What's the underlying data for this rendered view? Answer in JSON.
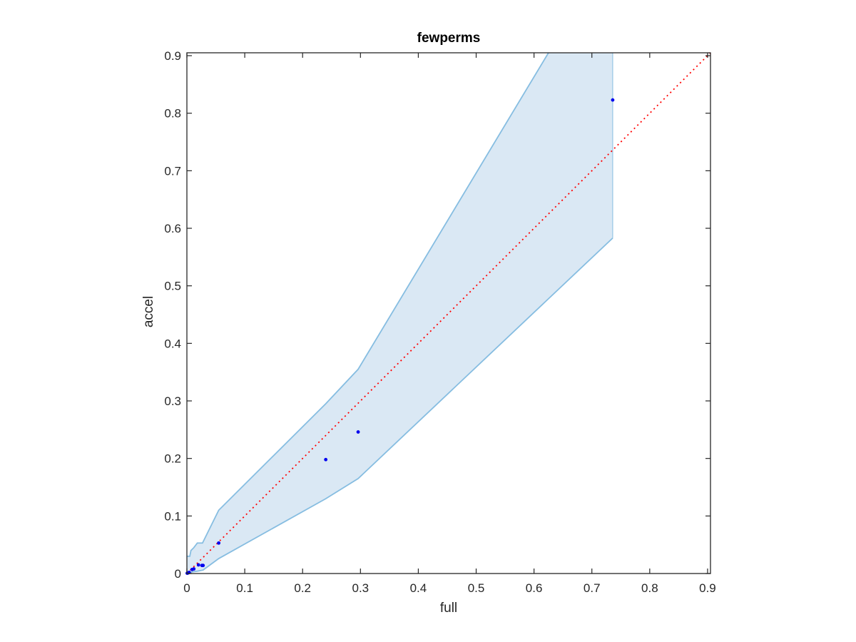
{
  "chart_data": {
    "type": "scatter",
    "title": "fewperms",
    "xlabel": "full",
    "ylabel": "accel",
    "xlim": [
      0,
      0.905
    ],
    "ylim": [
      0,
      0.905
    ],
    "xticks": [
      0,
      0.1,
      0.2,
      0.3,
      0.4,
      0.5,
      0.6,
      0.7,
      0.8,
      0.9
    ],
    "xtick_labels": [
      "0",
      "0.1",
      "0.2",
      "0.3",
      "0.4",
      "0.5",
      "0.6",
      "0.7",
      "0.8",
      "0.9"
    ],
    "yticks": [
      0,
      0.1,
      0.2,
      0.3,
      0.4,
      0.5,
      0.6,
      0.7,
      0.8,
      0.9
    ],
    "ytick_labels": [
      "0",
      "0.1",
      "0.2",
      "0.3",
      "0.4",
      "0.5",
      "0.6",
      "0.7",
      "0.8",
      "0.9"
    ],
    "grid": false,
    "band": {
      "upper": [
        [
          0.0,
          0.03
        ],
        [
          0.005,
          0.03
        ],
        [
          0.007,
          0.04
        ],
        [
          0.012,
          0.045
        ],
        [
          0.018,
          0.053
        ],
        [
          0.027,
          0.053
        ],
        [
          0.055,
          0.11
        ],
        [
          0.24,
          0.295
        ],
        [
          0.296,
          0.355
        ],
        [
          0.625,
          0.905
        ]
      ],
      "lower": [
        [
          0.0,
          0.0
        ],
        [
          0.01,
          0.003
        ],
        [
          0.018,
          0.004
        ],
        [
          0.028,
          0.006
        ],
        [
          0.055,
          0.026
        ],
        [
          0.24,
          0.13
        ],
        [
          0.296,
          0.165
        ],
        [
          0.736,
          0.583
        ]
      ],
      "right_x": 0.736,
      "color": "#dae8f4",
      "edge_color": "#86bde1"
    },
    "diagonal": {
      "values": [
        [
          0,
          0
        ],
        [
          0.905,
          0.905
        ]
      ],
      "color": "#ff0000"
    },
    "series": [
      {
        "color": "#0000ee",
        "points": [
          [
            0.0005,
            0.0005
          ],
          [
            0.002,
            0.001
          ],
          [
            0.004,
            0.002
          ],
          [
            0.009,
            0.007
          ],
          [
            0.012,
            0.008
          ],
          [
            0.02,
            0.015
          ],
          [
            0.026,
            0.014
          ],
          [
            0.028,
            0.014
          ],
          [
            0.055,
            0.053
          ],
          [
            0.24,
            0.198
          ],
          [
            0.296,
            0.246
          ],
          [
            0.736,
            0.823
          ]
        ]
      }
    ]
  }
}
